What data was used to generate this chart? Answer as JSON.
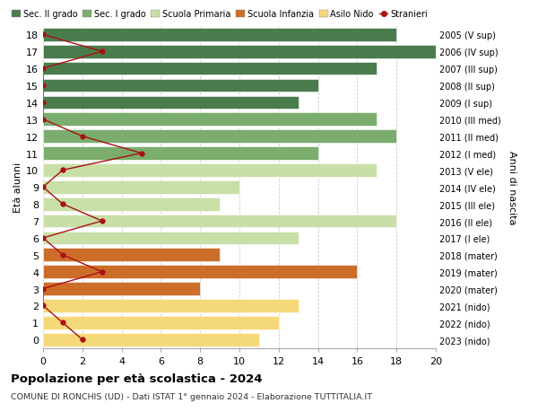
{
  "ages": [
    18,
    17,
    16,
    15,
    14,
    13,
    12,
    11,
    10,
    9,
    8,
    7,
    6,
    5,
    4,
    3,
    2,
    1,
    0
  ],
  "right_labels": [
    "2005 (V sup)",
    "2006 (IV sup)",
    "2007 (III sup)",
    "2008 (II sup)",
    "2009 (I sup)",
    "2010 (III med)",
    "2011 (II med)",
    "2012 (I med)",
    "2013 (V ele)",
    "2014 (IV ele)",
    "2015 (III ele)",
    "2016 (II ele)",
    "2017 (I ele)",
    "2018 (mater)",
    "2019 (mater)",
    "2020 (mater)",
    "2021 (nido)",
    "2022 (nido)",
    "2023 (nido)"
  ],
  "bar_values": [
    18,
    20,
    17,
    14,
    13,
    17,
    18,
    14,
    17,
    10,
    9,
    18,
    13,
    9,
    16,
    8,
    13,
    12,
    11
  ],
  "bar_colors": [
    "#4a7c4e",
    "#4a7c4e",
    "#4a7c4e",
    "#4a7c4e",
    "#4a7c4e",
    "#7aad6e",
    "#7aad6e",
    "#7aad6e",
    "#c8dfa8",
    "#c8dfa8",
    "#c8dfa8",
    "#c8dfa8",
    "#c8dfa8",
    "#cc6e2a",
    "#cc6e2a",
    "#cc6e2a",
    "#f5d87a",
    "#f5d87a",
    "#f5d87a"
  ],
  "stranieri_values": [
    0,
    3,
    0,
    0,
    0,
    0,
    2,
    5,
    1,
    0,
    1,
    3,
    0,
    1,
    3,
    0,
    0,
    1,
    2
  ],
  "legend_labels": [
    "Sec. II grado",
    "Sec. I grado",
    "Scuola Primaria",
    "Scuola Infanzia",
    "Asilo Nido",
    "Stranieri"
  ],
  "legend_colors": [
    "#4a7c4e",
    "#7aad6e",
    "#c8dfa8",
    "#cc6e2a",
    "#f5d87a",
    "#aa1111"
  ],
  "ylabel_left": "Età alunni",
  "ylabel_right": "Anni di nascita",
  "title": "Popolazione per età scolastica - 2024",
  "subtitle": "COMUNE DI RONCHIS (UD) - Dati ISTAT 1° gennaio 2024 - Elaborazione TUTTITALIA.IT",
  "xlim": [
    0,
    20
  ],
  "xticks": [
    0,
    2,
    4,
    6,
    8,
    10,
    12,
    14,
    16,
    18,
    20
  ],
  "bar_height": 0.78,
  "background_color": "#ffffff",
  "grid_color": "#cccccc"
}
